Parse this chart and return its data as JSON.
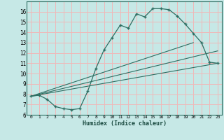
{
  "xlabel": "Humidex (Indice chaleur)",
  "background_color": "#c6e8e6",
  "grid_color": "#f0b8b8",
  "line_color": "#2e6e62",
  "xlim": [
    -0.5,
    23.5
  ],
  "ylim": [
    6,
    17
  ],
  "yticks": [
    6,
    7,
    8,
    9,
    10,
    11,
    12,
    13,
    14,
    15,
    16
  ],
  "xticks": [
    0,
    1,
    2,
    3,
    4,
    5,
    6,
    7,
    8,
    9,
    10,
    11,
    12,
    13,
    14,
    15,
    16,
    17,
    18,
    19,
    20,
    21,
    22,
    23
  ],
  "series1_x": [
    0,
    1,
    2,
    3,
    4,
    5,
    6,
    7,
    8,
    9,
    10,
    11,
    12,
    13,
    14,
    15,
    16,
    17,
    18,
    19,
    20,
    21,
    22,
    23
  ],
  "series1_y": [
    7.8,
    7.9,
    7.5,
    6.8,
    6.6,
    6.5,
    6.6,
    8.3,
    10.5,
    12.3,
    13.5,
    14.7,
    14.4,
    15.8,
    15.5,
    16.3,
    16.3,
    16.2,
    15.6,
    14.8,
    13.9,
    13.0,
    11.1,
    11.0
  ],
  "series2_x": [
    0,
    23
  ],
  "series2_y": [
    7.8,
    11.0
  ],
  "series3_x": [
    0,
    20
  ],
  "series3_y": [
    7.8,
    13.0
  ],
  "series4_x": [
    0,
    23
  ],
  "series4_y": [
    7.8,
    12.2
  ]
}
